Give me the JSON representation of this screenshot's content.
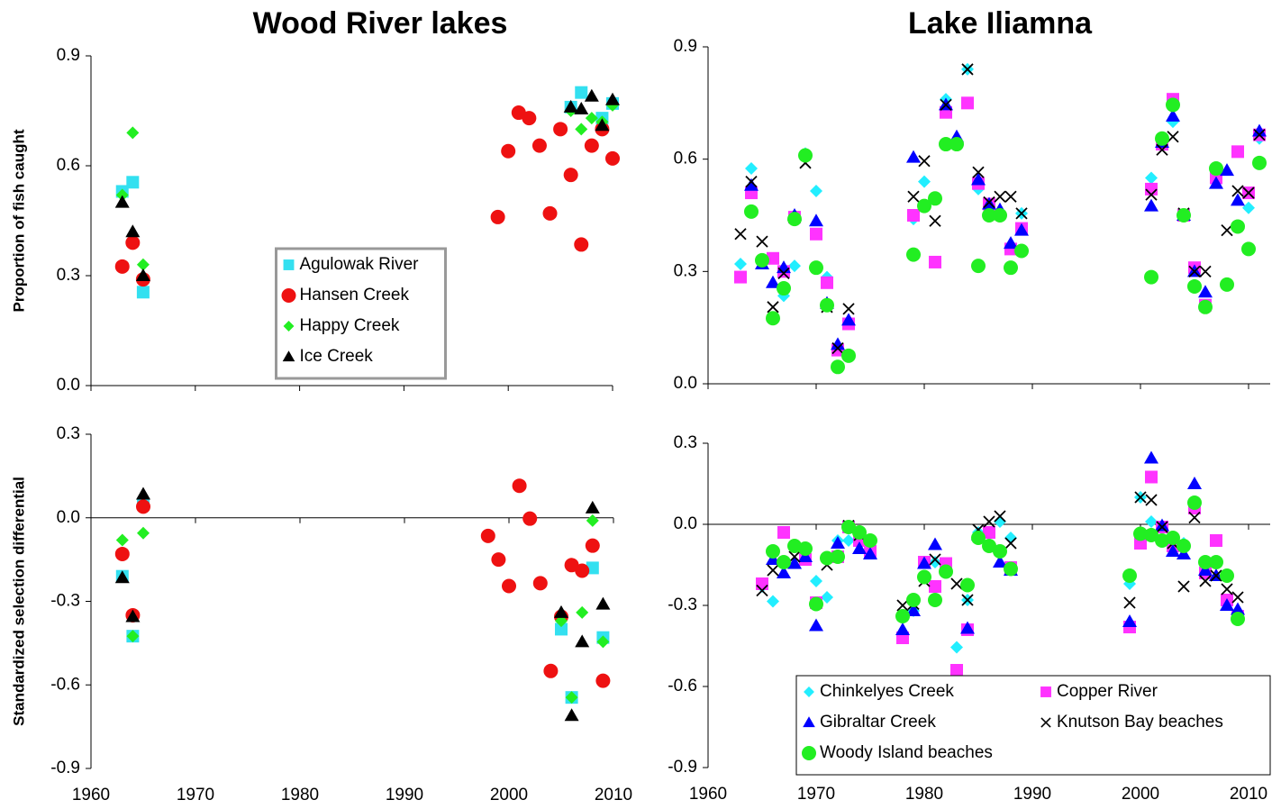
{
  "chart_data": [
    {
      "type": "scatter",
      "title": "Wood River lakes",
      "ylabel": "Proportion of fish caught",
      "xlim": [
        1960,
        2010
      ],
      "ylim": [
        0,
        0.9
      ],
      "xticks": [
        1960,
        1970,
        1980,
        1990,
        2000,
        2010
      ],
      "yticks": [
        {
          "value": 0,
          "label": "0.0"
        },
        0.3,
        0.6,
        0.9
      ],
      "legend": "lower-center",
      "legend_columns": 1,
      "series": [
        {
          "name": "Agulowak River",
          "marker": "square",
          "color": "#33e0f0",
          "x": [
            1963,
            1964,
            1965,
            2006,
            2007,
            2009,
            2010
          ],
          "values": [
            0.53,
            0.555,
            0.255,
            0.76,
            0.8,
            0.73,
            0.77
          ]
        },
        {
          "name": "Hansen Creek",
          "marker": "circle",
          "color": "#ee1111",
          "x": [
            1963,
            1964,
            1965,
            1999,
            2000,
            2001,
            2002,
            2003,
            2004,
            2005,
            2006,
            2007,
            2008,
            2009,
            2010
          ],
          "values": [
            0.325,
            0.39,
            0.29,
            0.46,
            0.64,
            0.745,
            0.73,
            0.655,
            0.47,
            0.7,
            0.575,
            0.385,
            0.655,
            0.7,
            0.62
          ]
        },
        {
          "name": "Happy Creek",
          "marker": "diamond",
          "color": "#22ee22",
          "x": [
            1963,
            1964,
            1965,
            2006,
            2007,
            2008,
            2009,
            2010
          ],
          "values": [
            0.52,
            0.69,
            0.33,
            0.75,
            0.7,
            0.73,
            0.72,
            0.765
          ]
        },
        {
          "name": "Ice Creek",
          "marker": "triangle",
          "color": "#000000",
          "x": [
            1963,
            1964,
            1965,
            2006,
            2007,
            2008,
            2009,
            2010
          ],
          "values": [
            0.5,
            0.42,
            0.3,
            0.76,
            0.755,
            0.79,
            0.71,
            0.78
          ]
        }
      ]
    },
    {
      "type": "scatter",
      "title": "Lake Iliamna",
      "xlim": [
        1960,
        2012
      ],
      "ylim": [
        0,
        0.9
      ],
      "xticks": [
        1960,
        1970,
        1980,
        1990,
        2000,
        2010
      ],
      "yticks": [
        {
          "value": 0,
          "label": "0.0"
        },
        0.3,
        0.6,
        0.9
      ],
      "series": [
        {
          "marker": "diamond",
          "color": "#22eeff",
          "x": [
            1963,
            1964,
            1967,
            1968,
            1969,
            1970,
            1971,
            1972,
            1973,
            1979,
            1980,
            1982,
            1984,
            1985,
            1986,
            1989,
            2001,
            2003,
            2010,
            2011
          ],
          "values": [
            0.32,
            0.575,
            0.235,
            0.315,
            0.615,
            0.515,
            0.285,
            0.09,
            0.165,
            0.44,
            0.54,
            0.76,
            0.84,
            0.52,
            0.48,
            0.455,
            0.55,
            0.7,
            0.47,
            0.655
          ]
        },
        {
          "marker": "square",
          "color": "#ff33ff",
          "x": [
            1963,
            1964,
            1966,
            1967,
            1968,
            1970,
            1971,
            1972,
            1973,
            1979,
            1981,
            1982,
            1984,
            1985,
            1986,
            1988,
            1989,
            2001,
            2002,
            2003,
            2004,
            2005,
            2006,
            2007,
            2009,
            2010,
            2011
          ],
          "values": [
            0.285,
            0.51,
            0.335,
            0.3,
            0.445,
            0.4,
            0.27,
            0.09,
            0.16,
            0.45,
            0.325,
            0.725,
            0.75,
            0.535,
            0.48,
            0.36,
            0.415,
            0.52,
            0.64,
            0.76,
            0.45,
            0.31,
            0.21,
            0.55,
            0.62,
            0.51,
            0.665
          ]
        },
        {
          "marker": "triangle",
          "color": "#0000ff",
          "x": [
            1964,
            1965,
            1966,
            1967,
            1968,
            1970,
            1971,
            1972,
            1973,
            1979,
            1982,
            1983,
            1985,
            1986,
            1987,
            1988,
            1989,
            2001,
            2002,
            2003,
            2004,
            2005,
            2006,
            2007,
            2008,
            2009,
            2011
          ],
          "values": [
            0.53,
            0.32,
            0.27,
            0.31,
            0.45,
            0.435,
            0.215,
            0.105,
            0.17,
            0.605,
            0.745,
            0.66,
            0.545,
            0.48,
            0.465,
            0.375,
            0.41,
            0.475,
            0.645,
            0.715,
            0.45,
            0.3,
            0.245,
            0.535,
            0.57,
            0.49,
            0.675
          ]
        },
        {
          "marker": "x",
          "color": "#000000",
          "x": [
            1963,
            1964,
            1965,
            1966,
            1967,
            1969,
            1971,
            1972,
            1973,
            1979,
            1980,
            1981,
            1982,
            1984,
            1985,
            1986,
            1987,
            1988,
            1989,
            2001,
            2002,
            2003,
            2004,
            2005,
            2006,
            2008,
            2009,
            2010,
            2011
          ],
          "values": [
            0.4,
            0.54,
            0.38,
            0.205,
            0.295,
            0.59,
            0.205,
            0.095,
            0.2,
            0.5,
            0.595,
            0.435,
            0.745,
            0.84,
            0.565,
            0.485,
            0.5,
            0.5,
            0.455,
            0.505,
            0.625,
            0.66,
            0.455,
            0.3,
            0.3,
            0.41,
            0.515,
            0.51,
            0.665
          ]
        },
        {
          "marker": "circle",
          "color": "#22ee22",
          "x": [
            1964,
            1965,
            1966,
            1967,
            1968,
            1969,
            1970,
            1971,
            1972,
            1973,
            1979,
            1980,
            1981,
            1982,
            1983,
            1985,
            1986,
            1987,
            1988,
            1989,
            2001,
            2002,
            2003,
            2004,
            2005,
            2006,
            2007,
            2008,
            2009,
            2010,
            2011
          ],
          "values": [
            0.46,
            0.33,
            0.175,
            0.255,
            0.44,
            0.61,
            0.31,
            0.21,
            0.045,
            0.075,
            0.345,
            0.475,
            0.495,
            0.64,
            0.64,
            0.315,
            0.45,
            0.45,
            0.31,
            0.355,
            0.285,
            0.655,
            0.745,
            0.45,
            0.26,
            0.205,
            0.575,
            0.265,
            0.42,
            0.36,
            0.59
          ]
        }
      ]
    },
    {
      "type": "scatter",
      "ylabel": "Standardized selection differential",
      "xlim": [
        1960,
        2010
      ],
      "ylim": [
        -0.9,
        0.3
      ],
      "xticks": [
        1960,
        1970,
        1980,
        1990,
        2000,
        2010
      ],
      "yticks": [
        -0.9,
        -0.6,
        -0.3,
        {
          "value": 0,
          "label": "0.0"
        },
        0.3
      ],
      "series": [
        {
          "marker": "square",
          "color": "#33e0f0",
          "x": [
            1963,
            1964,
            1965,
            2005,
            2006,
            2008,
            2009
          ],
          "values": [
            -0.21,
            -0.425,
            0.05,
            -0.4,
            -0.645,
            -0.18,
            -0.43
          ]
        },
        {
          "marker": "circle",
          "color": "#ee1111",
          "x": [
            1963,
            1964,
            1965,
            1998,
            1999,
            2000,
            2001,
            2002,
            2003,
            2004,
            2005,
            2006,
            2007,
            2008,
            2009
          ],
          "values": [
            -0.13,
            -0.35,
            0.04,
            -0.065,
            -0.15,
            -0.245,
            0.115,
            -0.003,
            -0.235,
            -0.55,
            -0.355,
            -0.17,
            -0.19,
            -0.1,
            -0.585
          ]
        },
        {
          "marker": "diamond",
          "color": "#22ee22",
          "x": [
            1963,
            1964,
            1965,
            2005,
            2006,
            2007,
            2008,
            2009
          ],
          "values": [
            -0.08,
            -0.425,
            -0.055,
            -0.37,
            -0.645,
            -0.34,
            -0.01,
            -0.445
          ]
        },
        {
          "marker": "triangle",
          "color": "#000000",
          "x": [
            1963,
            1964,
            1965,
            2005,
            2006,
            2007,
            2008,
            2009
          ],
          "values": [
            -0.215,
            -0.355,
            0.085,
            -0.34,
            -0.71,
            -0.445,
            0.035,
            -0.31
          ]
        }
      ]
    },
    {
      "type": "scatter",
      "xlim": [
        1960,
        2012
      ],
      "ylim": [
        -0.9,
        0.3
      ],
      "xticks": [
        1960,
        1970,
        1980,
        1990,
        2000,
        2010
      ],
      "yticks": [
        -0.9,
        -0.6,
        -0.3,
        {
          "value": 0,
          "label": "0.0"
        },
        0.3
      ],
      "legend": "lower-right",
      "legend_columns": 2,
      "series": [
        {
          "name": "Chinkelyes Creek",
          "marker": "diamond",
          "color": "#22eeff",
          "x": [
            1965,
            1966,
            1970,
            1971,
            1972,
            1973,
            1979,
            1981,
            1983,
            1984,
            1985,
            1987,
            1988,
            1999,
            2000,
            2001,
            2002,
            2004
          ],
          "values": [
            -0.23,
            -0.285,
            -0.21,
            -0.27,
            -0.06,
            -0.06,
            -0.32,
            -0.14,
            -0.455,
            -0.28,
            -0.03,
            0.01,
            -0.05,
            -0.22,
            0.1,
            0.01,
            -0.01,
            -0.07
          ]
        },
        {
          "name": "Copper River",
          "marker": "square",
          "color": "#ff33ff",
          "x": [
            1965,
            1967,
            1969,
            1970,
            1972,
            1973,
            1974,
            1975,
            1978,
            1980,
            1981,
            1982,
            1983,
            1984,
            1986,
            1988,
            1999,
            2000,
            2001,
            2002,
            2003,
            2005,
            2006,
            2007,
            2008,
            2009
          ],
          "values": [
            -0.22,
            -0.03,
            -0.13,
            -0.29,
            -0.12,
            -0.01,
            -0.06,
            -0.1,
            -0.42,
            -0.14,
            -0.23,
            -0.145,
            -0.54,
            -0.39,
            -0.03,
            -0.16,
            -0.38,
            -0.07,
            0.175,
            -0.01,
            -0.08,
            0.06,
            -0.18,
            -0.06,
            -0.28,
            -0.34
          ]
        },
        {
          "name": "Gibraltar Creek",
          "marker": "triangle",
          "color": "#0000ff",
          "x": [
            1966,
            1967,
            1968,
            1969,
            1970,
            1972,
            1974,
            1975,
            1978,
            1979,
            1980,
            1981,
            1984,
            1985,
            1987,
            1988,
            1999,
            2001,
            2002,
            2003,
            2004,
            2005,
            2006,
            2007,
            2008,
            2009
          ],
          "values": [
            -0.13,
            -0.18,
            -0.145,
            -0.12,
            -0.375,
            -0.07,
            -0.09,
            -0.11,
            -0.39,
            -0.32,
            -0.145,
            -0.075,
            -0.385,
            -0.04,
            -0.14,
            -0.17,
            -0.36,
            0.245,
            -0.005,
            -0.1,
            -0.11,
            0.15,
            -0.17,
            -0.19,
            -0.3,
            -0.315
          ]
        },
        {
          "name": "Knutson Bay beaches",
          "marker": "x",
          "color": "#000000",
          "x": [
            1965,
            1966,
            1968,
            1971,
            1973,
            1974,
            1978,
            1979,
            1980,
            1981,
            1983,
            1984,
            1985,
            1986,
            1987,
            1988,
            1999,
            2000,
            2001,
            2002,
            2003,
            2004,
            2005,
            2006,
            2007,
            2008,
            2009
          ],
          "values": [
            -0.245,
            -0.17,
            -0.12,
            -0.15,
            -0.005,
            -0.04,
            -0.3,
            -0.295,
            -0.21,
            -0.13,
            -0.22,
            -0.28,
            -0.02,
            0.01,
            0.03,
            -0.07,
            -0.29,
            0.1,
            0.09,
            -0.01,
            -0.07,
            -0.23,
            0.025,
            -0.21,
            -0.19,
            -0.24,
            -0.27
          ]
        },
        {
          "name": "Woody Island beaches",
          "marker": "circle",
          "color": "#22ee22",
          "x": [
            1966,
            1967,
            1968,
            1969,
            1970,
            1971,
            1972,
            1973,
            1974,
            1975,
            1978,
            1979,
            1980,
            1981,
            1982,
            1984,
            1985,
            1986,
            1987,
            1988,
            1999,
            2000,
            2001,
            2002,
            2003,
            2004,
            2005,
            2006,
            2007,
            2008,
            2009
          ],
          "values": [
            -0.1,
            -0.14,
            -0.08,
            -0.09,
            -0.295,
            -0.125,
            -0.12,
            -0.01,
            -0.03,
            -0.06,
            -0.34,
            -0.28,
            -0.195,
            -0.28,
            -0.175,
            -0.225,
            -0.05,
            -0.08,
            -0.1,
            -0.165,
            -0.19,
            -0.035,
            -0.04,
            -0.06,
            -0.05,
            -0.08,
            0.08,
            -0.14,
            -0.14,
            -0.19,
            -0.35
          ]
        }
      ]
    }
  ]
}
